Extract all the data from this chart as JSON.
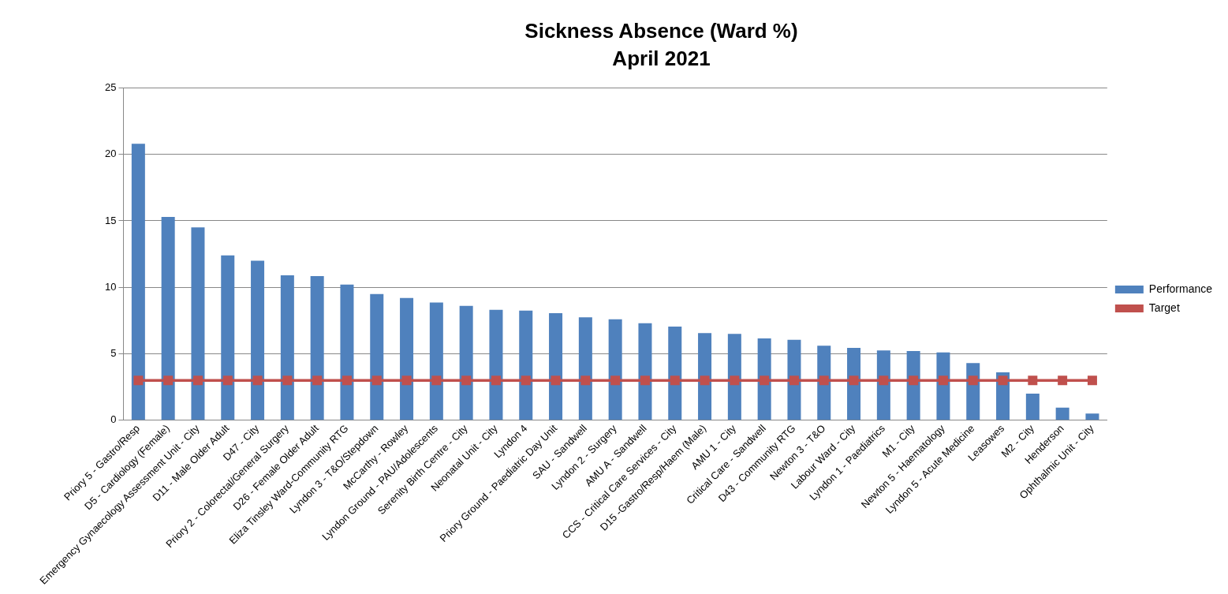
{
  "chart_data": {
    "type": "bar",
    "title": "Sickness Absence (Ward %)",
    "subtitle": "April 2021",
    "categories": [
      "Priory 5 - Gastro/Resp",
      "D5 - Cardiology (Female)",
      "Emergency Gynaecology Assessment Unit - City",
      "D11 - Male Older Adult",
      "D47 - City",
      "Priory 2 - Colorectal/General Surgery",
      "D26 - Female Older Adult",
      "Eliza Tinsley Ward-Community RTG",
      "Lyndon 3 - T&O/Stepdown",
      "McCarthy - Rowley",
      "Lyndon Ground - PAU/Adolescents",
      "Serenity Birth Centre - City",
      "Neonatal Unit - City",
      "Lyndon 4",
      "Priory Ground - Paediatric Day Unit",
      "SAU - Sandwell",
      "Lyndon 2 - Surgery",
      "AMU A - Sandwell",
      "CCS - Critical Care Services - City",
      "D15 -Gastro/Resp/Haem (Male)",
      "AMU 1 - City",
      "Critical Care - Sandwell",
      "D43 - Community RTG",
      "Newton 3 - T&O",
      "Labour Ward - City",
      "Lyndon 1 - Paediatrics",
      "M1 - City",
      "Newton 5 - Haematology",
      "Lyndon 5 - Acute Medicine",
      "Leasowes",
      "M2 - City",
      "Henderson",
      "Ophthalmic Unit - City"
    ],
    "series": [
      {
        "name": "Performance",
        "color": "#4f81bd",
        "values": [
          20.8,
          15.3,
          14.5,
          12.4,
          12.0,
          10.9,
          10.85,
          10.2,
          9.5,
          9.2,
          8.85,
          8.6,
          8.3,
          8.25,
          8.05,
          7.75,
          7.6,
          7.3,
          7.05,
          6.55,
          6.5,
          6.15,
          6.05,
          5.6,
          5.45,
          5.25,
          5.2,
          5.1,
          4.3,
          3.6,
          2.0,
          0.95,
          0.5
        ]
      },
      {
        "name": "Target",
        "type": "line",
        "color": "#c0504d",
        "values": [
          3,
          3,
          3,
          3,
          3,
          3,
          3,
          3,
          3,
          3,
          3,
          3,
          3,
          3,
          3,
          3,
          3,
          3,
          3,
          3,
          3,
          3,
          3,
          3,
          3,
          3,
          3,
          3,
          3,
          3,
          3,
          3,
          3
        ]
      }
    ],
    "ylim": [
      0,
      25
    ],
    "yticks": [
      0,
      5,
      10,
      15,
      20,
      25
    ],
    "grid": "y",
    "legend": "right",
    "marker": "square",
    "line_style": "solid"
  }
}
